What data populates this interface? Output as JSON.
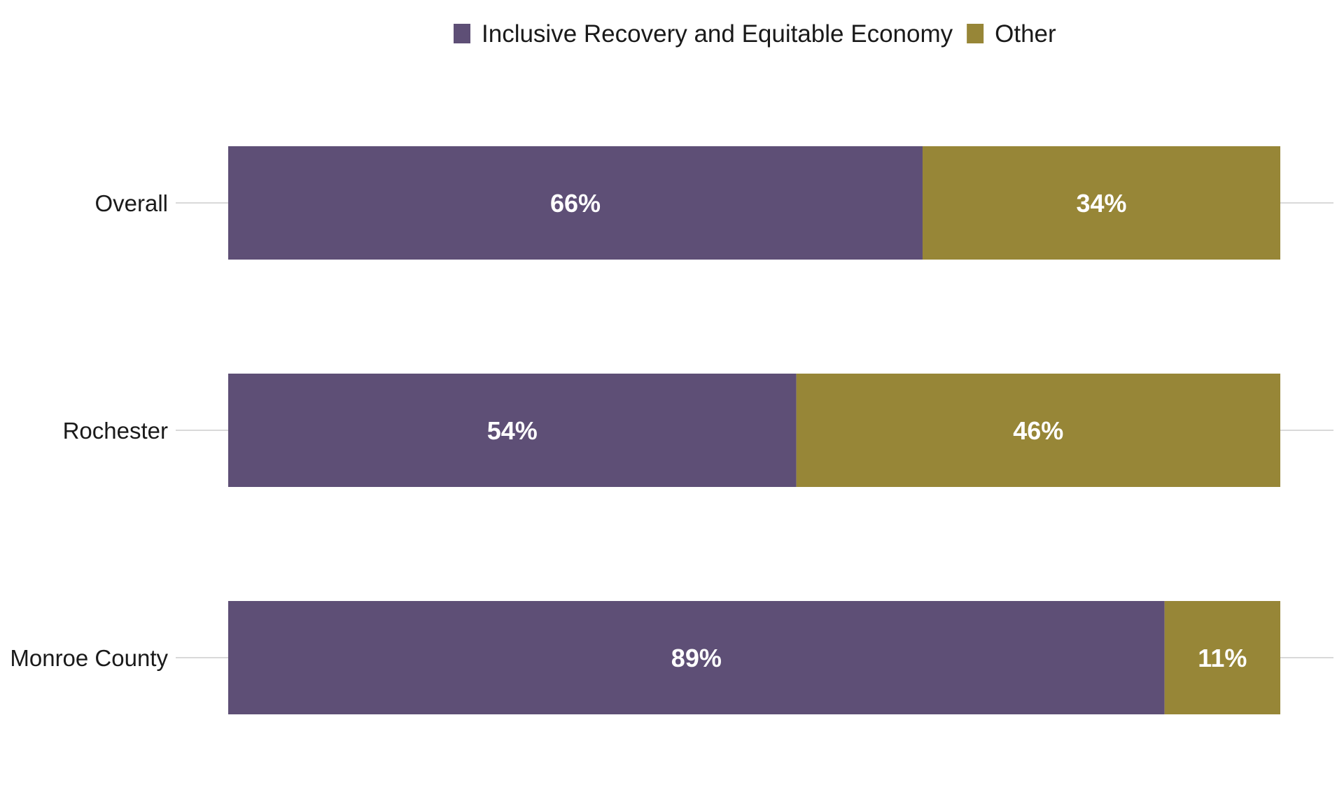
{
  "chart_data": {
    "type": "bar",
    "orientation": "horizontal",
    "stacked": true,
    "categories": [
      "Overall",
      "Rochester",
      "Monroe County"
    ],
    "series": [
      {
        "name": "Inclusive Recovery and Equitable Economy",
        "color": "#5e4f76",
        "values": [
          66,
          54,
          89
        ],
        "labels": [
          "66%",
          "54%",
          "89%"
        ]
      },
      {
        "name": "Other",
        "color": "#978637",
        "values": [
          34,
          46,
          11
        ],
        "labels": [
          "34%",
          "46%",
          "11%"
        ]
      }
    ],
    "value_unit": "%",
    "xlim": [
      0,
      100
    ],
    "legend_position": "top-center",
    "grid": false,
    "xlabel": "",
    "ylabel": ""
  }
}
